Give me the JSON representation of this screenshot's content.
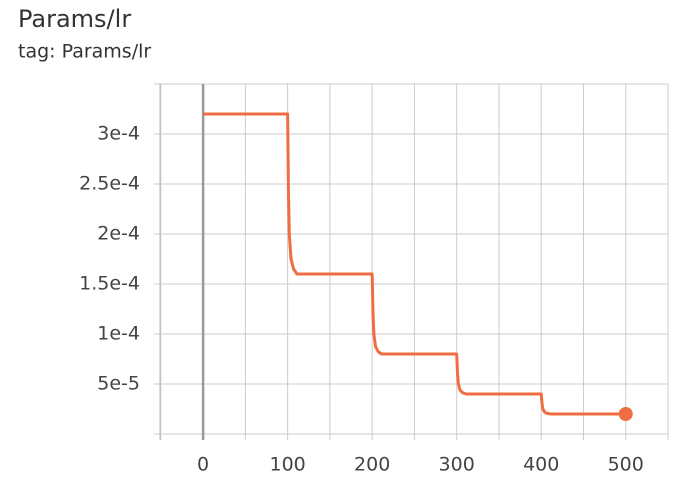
{
  "chart_data": {
    "type": "line",
    "title": "Params/lr",
    "subtitle": "tag: Params/lr",
    "xlim": [
      -51,
      550
    ],
    "ylim": [
      0,
      0.00035
    ],
    "xticks": [
      0,
      100,
      200,
      300,
      400,
      500
    ],
    "x_minor_ticks": [
      -50,
      50,
      150,
      250,
      350,
      450,
      550
    ],
    "yticks": [
      {
        "value": 5e-05,
        "label": "5e-5"
      },
      {
        "value": 0.0001,
        "label": "1e-4"
      },
      {
        "value": 0.00015,
        "label": "1.5e-4"
      },
      {
        "value": 0.0002,
        "label": "2e-4"
      },
      {
        "value": 0.00025,
        "label": "2.5e-4"
      },
      {
        "value": 0.0003,
        "label": "3e-4"
      }
    ],
    "y_minor_ticks": [
      0,
      0.00035
    ],
    "grid": true,
    "series": [
      {
        "color": "#f06d43",
        "x": [
          0,
          100,
          101,
          102,
          104,
          107,
          111,
          200,
          201,
          202,
          204,
          207,
          211,
          300,
          301,
          302,
          304,
          307,
          311,
          400,
          401,
          402,
          404,
          407,
          411,
          500
        ],
        "values": [
          0.00032,
          0.00032,
          0.00024,
          0.0002,
          0.000175,
          0.000165,
          0.00016,
          0.00016,
          0.00012,
          0.0001,
          8.75e-05,
          8.25e-05,
          8e-05,
          8e-05,
          6e-05,
          5e-05,
          4.38e-05,
          4.13e-05,
          4e-05,
          4e-05,
          3e-05,
          2.5e-05,
          2.19e-05,
          2.06e-05,
          2e-05,
          2e-05
        ]
      }
    ]
  }
}
